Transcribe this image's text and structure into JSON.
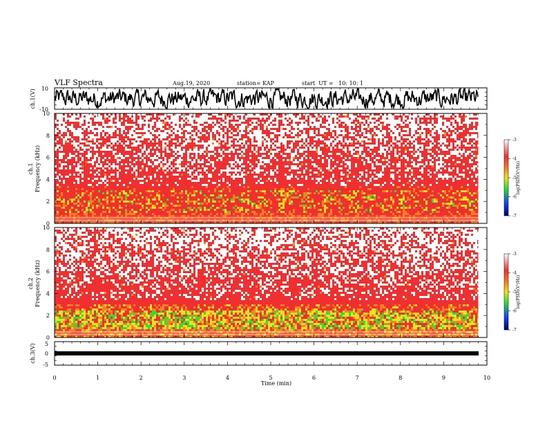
{
  "header": {
    "title": "VLF Spectra",
    "date": "Aug.19, 2020",
    "station": "station= KAP",
    "start": "start  UT =   10: 10: 1"
  },
  "colors": {
    "white": "#ffffff",
    "red": "#f03030",
    "orange": "#ff8020",
    "yellow": "#f0e020",
    "green": "#30e030",
    "blue": "#1040ff",
    "navy": "#000060"
  },
  "chart_data": [
    {
      "type": "line",
      "name": "waveform-ch1",
      "ylabel": "ch.1(V)",
      "ylim": [
        -10,
        10
      ],
      "yticks": [
        "10",
        "-10"
      ],
      "xlim": [
        0,
        10
      ],
      "series_color": "#000000"
    },
    {
      "type": "heatmap",
      "name": "spectrogram-ch1",
      "ylabel": "ch.1\nFrequency (kHz)",
      "ylim": [
        0,
        10
      ],
      "yticks": [
        "0",
        "2",
        "4",
        "6",
        "8",
        "10"
      ],
      "xlim": [
        0,
        10
      ],
      "data_end_min": 9.8,
      "colorbar": {
        "label": "log(PSD)(V²/Hz)",
        "range": [
          -7,
          -3
        ],
        "ticks": [
          "-3",
          "-4",
          "-5",
          "-6",
          "-7"
        ]
      }
    },
    {
      "type": "heatmap",
      "name": "spectrogram-ch2",
      "ylabel": "ch.2\nFrequency (kHz)",
      "ylim": [
        0,
        10
      ],
      "yticks": [
        "0",
        "2",
        "4",
        "6",
        "8",
        "10"
      ],
      "xlim": [
        0,
        10
      ],
      "data_end_min": 9.8,
      "colorbar": {
        "label": "log(PSD)(V²/Hz)",
        "range": [
          -7,
          -3
        ],
        "ticks": [
          "-3",
          "-4",
          "-5",
          "-6",
          "-7"
        ]
      }
    },
    {
      "type": "line",
      "name": "waveform-ch3",
      "ylabel": "ch.3(V)",
      "ylim": [
        -5,
        5
      ],
      "yticks": [
        "5",
        "0",
        "-5"
      ],
      "xlim": [
        0,
        10
      ],
      "xlabel": "Time (min)",
      "xticks": [
        "0",
        "1",
        "2",
        "3",
        "4",
        "5",
        "6",
        "7",
        "8",
        "9",
        "10"
      ]
    }
  ]
}
